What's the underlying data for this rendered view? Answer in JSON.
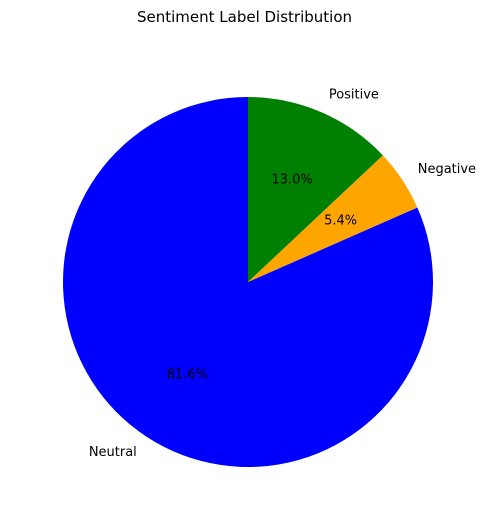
{
  "chart_data": {
    "type": "pie",
    "title": "Sentiment Label Distribution",
    "start_angle_deg": 90,
    "direction": "counterclockwise",
    "slices": [
      {
        "label": "Neutral",
        "value": 81.6,
        "pct_label": "81.6%",
        "color": "#0000ff"
      },
      {
        "label": "Negative",
        "value": 5.4,
        "pct_label": "5.4%",
        "color": "#ffa500"
      },
      {
        "label": "Positive",
        "value": 13.0,
        "pct_label": "13.0%",
        "color": "#008000"
      }
    ]
  }
}
